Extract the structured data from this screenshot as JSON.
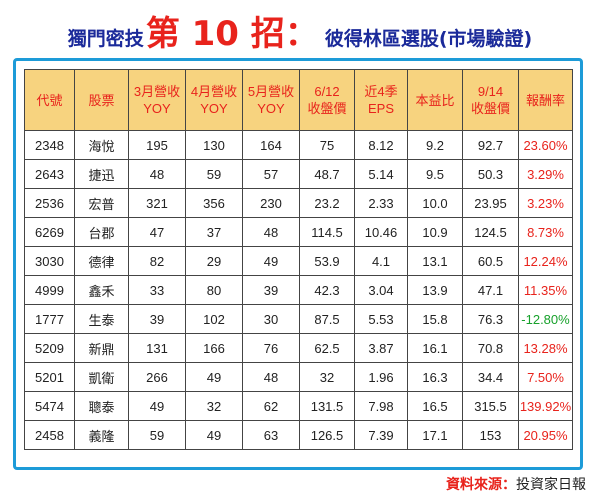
{
  "title": {
    "prefix": "獨門密技",
    "emphasis": "第 10 招：",
    "suffix": "彼得林區選股(市場驗證)"
  },
  "table": {
    "headers": [
      [
        "代號"
      ],
      [
        "股票"
      ],
      [
        "3月營收",
        "YOY"
      ],
      [
        "4月營收",
        "YOY"
      ],
      [
        "5月營收",
        "YOY"
      ],
      [
        "6/12",
        "收盤價"
      ],
      [
        "近4季",
        "EPS"
      ],
      [
        "本益比"
      ],
      [
        "9/14",
        "收盤價"
      ],
      [
        "報酬率"
      ]
    ],
    "rows": [
      {
        "code": "2348",
        "name": "海悅",
        "mar": "195",
        "apr": "130",
        "may": "164",
        "close612": "75",
        "eps": "8.12",
        "pe": "9.2",
        "close914": "92.7",
        "ret": "23.60%"
      },
      {
        "code": "2643",
        "name": "捷迅",
        "mar": "48",
        "apr": "59",
        "may": "57",
        "close612": "48.7",
        "eps": "5.14",
        "pe": "9.5",
        "close914": "50.3",
        "ret": "3.29%"
      },
      {
        "code": "2536",
        "name": "宏普",
        "mar": "321",
        "apr": "356",
        "may": "230",
        "close612": "23.2",
        "eps": "2.33",
        "pe": "10.0",
        "close914": "23.95",
        "ret": "3.23%"
      },
      {
        "code": "6269",
        "name": "台郡",
        "mar": "47",
        "apr": "37",
        "may": "48",
        "close612": "114.5",
        "eps": "10.46",
        "pe": "10.9",
        "close914": "124.5",
        "ret": "8.73%"
      },
      {
        "code": "3030",
        "name": "德律",
        "mar": "82",
        "apr": "29",
        "may": "49",
        "close612": "53.9",
        "eps": "4.1",
        "pe": "13.1",
        "close914": "60.5",
        "ret": "12.24%"
      },
      {
        "code": "4999",
        "name": "鑫禾",
        "mar": "33",
        "apr": "80",
        "may": "39",
        "close612": "42.3",
        "eps": "3.04",
        "pe": "13.9",
        "close914": "47.1",
        "ret": "11.35%"
      },
      {
        "code": "1777",
        "name": "生泰",
        "mar": "39",
        "apr": "102",
        "may": "30",
        "close612": "87.5",
        "eps": "5.53",
        "pe": "15.8",
        "close914": "76.3",
        "ret": "-12.80%"
      },
      {
        "code": "5209",
        "name": "新鼎",
        "mar": "131",
        "apr": "166",
        "may": "76",
        "close612": "62.5",
        "eps": "3.87",
        "pe": "16.1",
        "close914": "70.8",
        "ret": "13.28%"
      },
      {
        "code": "5201",
        "name": "凱衛",
        "mar": "266",
        "apr": "49",
        "may": "48",
        "close612": "32",
        "eps": "1.96",
        "pe": "16.3",
        "close914": "34.4",
        "ret": "7.50%"
      },
      {
        "code": "5474",
        "name": "聰泰",
        "mar": "49",
        "apr": "32",
        "may": "62",
        "close612": "131.5",
        "eps": "7.98",
        "pe": "16.5",
        "close914": "315.5",
        "ret": "139.92%"
      },
      {
        "code": "2458",
        "name": "義隆",
        "mar": "59",
        "apr": "49",
        "may": "63",
        "close612": "126.5",
        "eps": "7.39",
        "pe": "17.1",
        "close914": "153",
        "ret": "20.95%"
      }
    ]
  },
  "colors": {
    "header_bg": "#f7d37f",
    "header_text": "#e8231c",
    "frame_border": "#1d9bd8",
    "positive_return": "#e8231c",
    "negative_return": "#17a12b"
  },
  "source": {
    "label": "資料來源：",
    "value": "投資家日報"
  }
}
